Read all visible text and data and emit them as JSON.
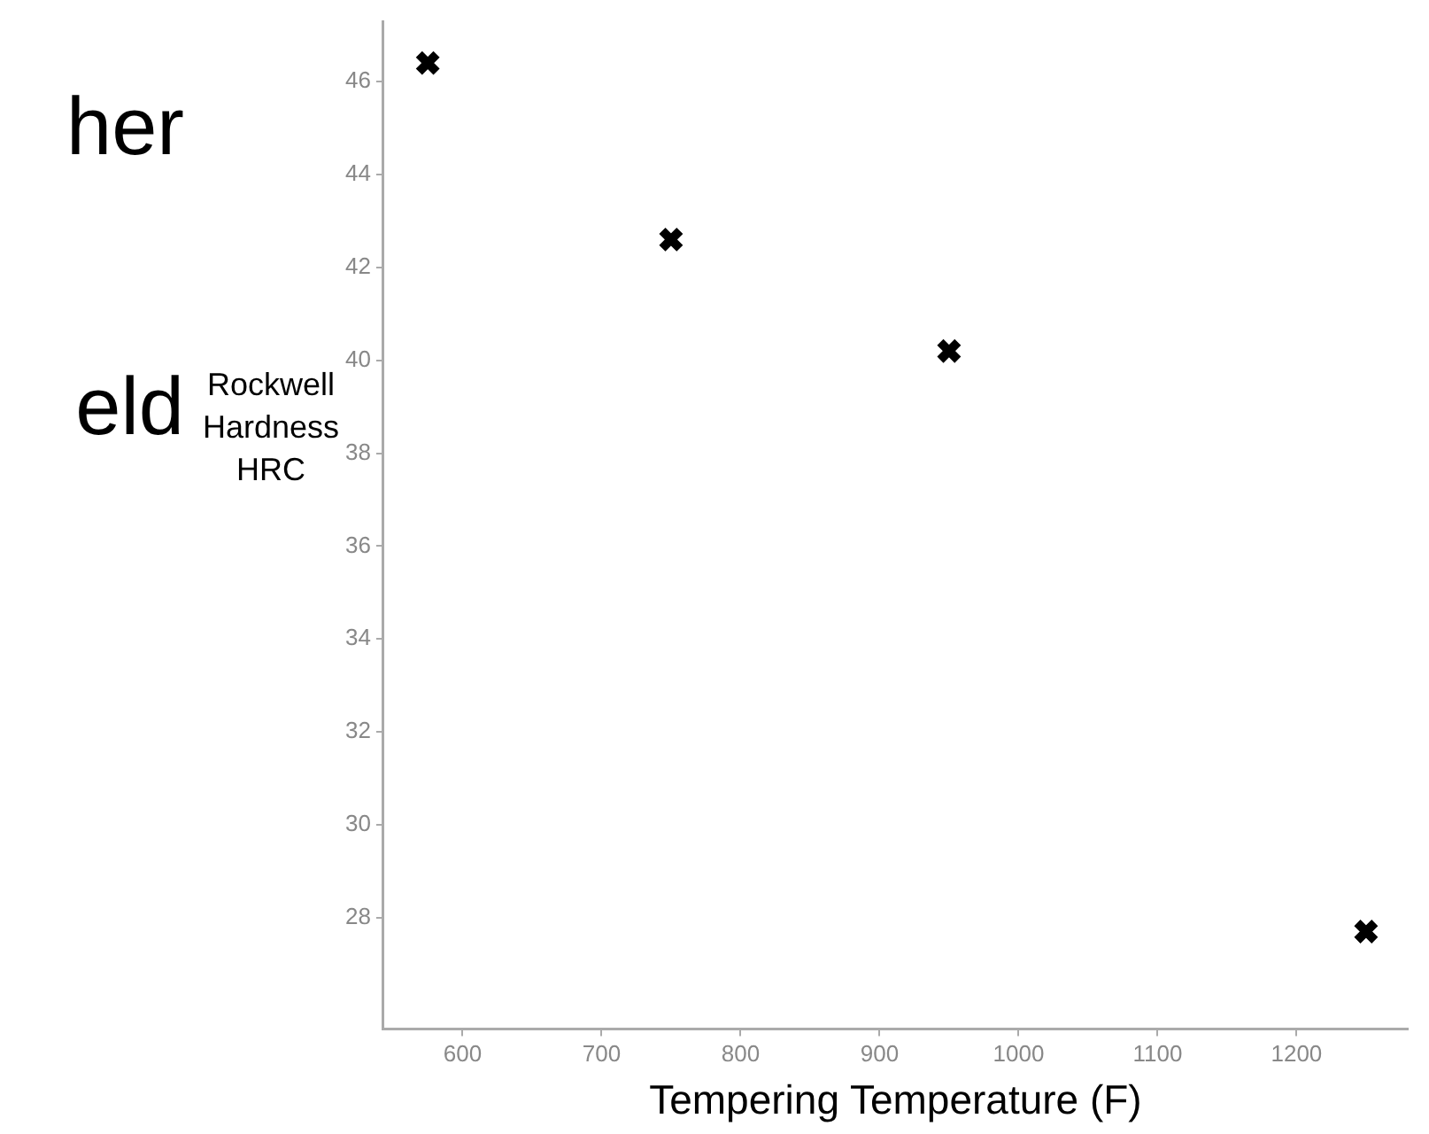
{
  "chart_data": {
    "type": "scatter",
    "xlabel": "Tempering Temperature (F)",
    "ylabel": "Rockwell Hardness HRC",
    "annotations": [
      "her",
      "eld"
    ],
    "x": [
      575,
      750,
      950,
      1250
    ],
    "values": [
      46.4,
      42.6,
      40.2,
      27.7
    ],
    "color": "#000000",
    "marker": "cross",
    "xlim": [
      543,
      1280
    ],
    "xticks": [
      600,
      700,
      800,
      900,
      1000,
      1100,
      1200
    ],
    "ylim": [
      25.6,
      47.3
    ],
    "yticks": [
      28,
      30,
      32,
      34,
      36,
      38,
      40,
      42,
      44,
      46
    ],
    "grid": false,
    "legend": false
  }
}
